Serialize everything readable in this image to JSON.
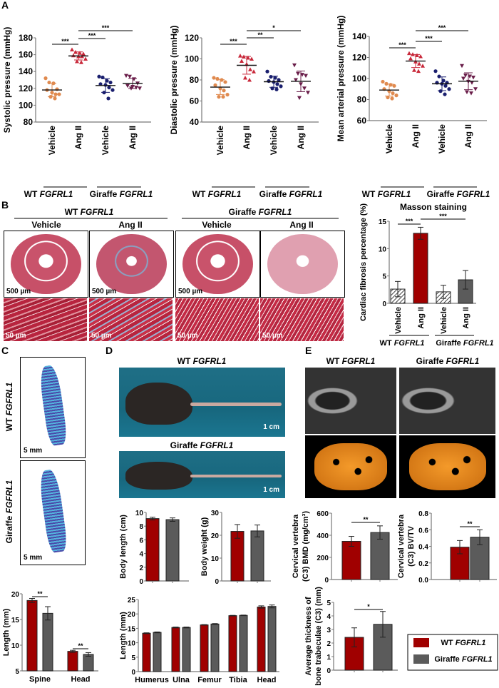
{
  "panel_labels": [
    "A",
    "B",
    "C",
    "D",
    "E"
  ],
  "genotypes": [
    {
      "pre": "WT",
      "gene": "FGFRL1"
    },
    {
      "pre": "Giraffe",
      "gene": "FGFRL1"
    }
  ],
  "treatments": [
    "Vehicle",
    "Ang II"
  ],
  "panel_b": {
    "scale_large": "500 µm",
    "scale_small": "50 µm"
  },
  "panel_c": {
    "scale": "5 mm"
  },
  "panel_d": {
    "scale": "1 cm"
  },
  "legend": [
    {
      "pre": "WT",
      "gene": "FGFRL1",
      "color": "#a00000"
    },
    {
      "pre": "Giraffe",
      "gene": "FGFRL1",
      "color": "#5b5b5b"
    }
  ],
  "chart_data": [
    {
      "id": "systolic",
      "type": "scatter",
      "ylabel": [
        "Systolic pressure (mmHg)"
      ],
      "ylim": [
        80,
        180
      ],
      "yticks": [
        80,
        100,
        120,
        140,
        160,
        180
      ],
      "categories": [
        "Vehicle",
        "Ang II",
        "Vehicle",
        "Ang II"
      ],
      "series": [
        {
          "name": "WT Vehicle",
          "color": "#e08a4f",
          "marker": "circle",
          "values": [
            132,
            127,
            126,
            119,
            118,
            115,
            113,
            113,
            110,
            108
          ]
        },
        {
          "name": "WT Ang II",
          "color": "#c8283a",
          "marker": "tri-up",
          "values": [
            166,
            163,
            162,
            161,
            159,
            158,
            158,
            155,
            152,
            151
          ]
        },
        {
          "name": "Giraffe Vehicle",
          "color": "#1a1f6e",
          "marker": "circle",
          "values": [
            134,
            133,
            129,
            127,
            125,
            124,
            121,
            118,
            115,
            108
          ]
        },
        {
          "name": "Giraffe Ang II",
          "color": "#6a1e4a",
          "marker": "tri-down",
          "values": [
            135,
            134,
            131,
            126,
            123,
            122,
            121,
            120,
            120
          ]
        }
      ],
      "significance": [
        {
          "from": 0,
          "to": 1,
          "label": "***"
        },
        {
          "from": 1,
          "to": 2,
          "label": "***"
        },
        {
          "from": 1,
          "to": 3,
          "label": "***"
        }
      ]
    },
    {
      "id": "diastolic",
      "type": "scatter",
      "ylabel": [
        "Diastolic pressure (mmHg)"
      ],
      "ylim": [
        40,
        120
      ],
      "yticks": [
        40,
        60,
        80,
        100,
        120
      ],
      "categories": [
        "Vehicle",
        "Ang II",
        "Vehicle",
        "Ang II"
      ],
      "series": [
        {
          "name": "WT Vehicle",
          "color": "#e08a4f",
          "marker": "circle",
          "values": [
            82,
            81,
            80,
            78,
            75,
            72,
            70,
            66,
            64,
            64
          ]
        },
        {
          "name": "WT Ang II",
          "color": "#c8283a",
          "marker": "tri-up",
          "values": [
            103,
            102,
            101,
            100,
            98,
            95,
            90,
            88,
            82,
            80
          ]
        },
        {
          "name": "Giraffe Vehicle",
          "color": "#1a1f6e",
          "marker": "circle",
          "values": [
            88,
            83,
            82,
            80,
            79,
            78,
            76,
            74,
            72,
            71
          ]
        },
        {
          "name": "Giraffe Ang II",
          "color": "#6a1e4a",
          "marker": "tri-down",
          "values": [
            94,
            86,
            85,
            84,
            80,
            76,
            72,
            68,
            63
          ]
        }
      ],
      "significance": [
        {
          "from": 0,
          "to": 1,
          "label": "***"
        },
        {
          "from": 1,
          "to": 2,
          "label": "**"
        },
        {
          "from": 1,
          "to": 3,
          "label": "*"
        }
      ]
    },
    {
      "id": "map",
      "type": "scatter",
      "ylabel": [
        "Mean arterial pressure (mmHg)"
      ],
      "ylim": [
        60,
        140
      ],
      "yticks": [
        60,
        80,
        100,
        120,
        140
      ],
      "categories": [
        "Vehicle",
        "Ang II",
        "Vehicle",
        "Ang II"
      ],
      "series": [
        {
          "name": "WT Vehicle",
          "color": "#e08a4f",
          "marker": "circle",
          "values": [
            97,
            95,
            94,
            93,
            90,
            88,
            86,
            84,
            82,
            81
          ]
        },
        {
          "name": "WT Ang II",
          "color": "#c8283a",
          "marker": "tri-up",
          "values": [
            124,
            123,
            122,
            121,
            119,
            116,
            114,
            112,
            108,
            107
          ]
        },
        {
          "name": "Giraffe Vehicle",
          "color": "#1a1f6e",
          "marker": "circle",
          "values": [
            107,
            102,
            98,
            96,
            96,
            95,
            93,
            90,
            88,
            85
          ]
        },
        {
          "name": "Giraffe Ang II",
          "color": "#6a1e4a",
          "marker": "tri-down",
          "values": [
            112,
            103,
            102,
            101,
            100,
            97,
            96,
            90,
            87,
            86
          ]
        }
      ],
      "significance": [
        {
          "from": 0,
          "to": 1,
          "label": "***"
        },
        {
          "from": 1,
          "to": 2,
          "label": "***"
        },
        {
          "from": 1,
          "to": 3,
          "label": "***"
        }
      ]
    },
    {
      "id": "masson",
      "type": "bar",
      "title": "Masson staining",
      "ylabel": [
        "Cardiac fibrosis percentage (%)"
      ],
      "ylim": [
        0,
        15
      ],
      "yticks": [
        0,
        5,
        10,
        15
      ],
      "categories": [
        "Vehicle",
        "Ang II",
        "Vehicle",
        "Ang II"
      ],
      "series": [
        {
          "name": "Cardiac fibrosis",
          "values": [
            2.6,
            12.8,
            2.1,
            4.3
          ],
          "errors": [
            1.4,
            1.1,
            1.2,
            1.7
          ],
          "fills": [
            "hatch",
            "#a00000",
            "hatch",
            "#5b5b5b"
          ]
        }
      ],
      "significance": [
        {
          "from": 0,
          "to": 1,
          "label": "***"
        },
        {
          "from": 1,
          "to": 3,
          "label": "***"
        }
      ]
    },
    {
      "id": "c_length",
      "type": "bar",
      "ylabel": [
        "Length (mm)"
      ],
      "ylim": [
        5,
        20
      ],
      "yticks": [
        5,
        10,
        15,
        20
      ],
      "categories": [
        "Spine",
        "Head"
      ],
      "series": [
        {
          "name": "WT FGFRL1",
          "values": [
            18.7,
            8.8
          ],
          "errors": [
            0.4,
            0.2
          ]
        },
        {
          "name": "Giraffe FGFRL1",
          "values": [
            16.2,
            8.2
          ],
          "errors": [
            1.3,
            0.35
          ]
        }
      ],
      "significance": [
        {
          "cat": 0,
          "label": "**"
        },
        {
          "cat": 1,
          "label": "**"
        }
      ]
    },
    {
      "id": "body_length",
      "type": "bar",
      "ylabel": [
        "Body length (cm)"
      ],
      "ylim": [
        0,
        10
      ],
      "yticks": [
        0,
        2,
        4,
        6,
        8,
        10
      ],
      "categories": [
        ""
      ],
      "series": [
        {
          "name": "WT FGFRL1",
          "values": [
            9.1
          ],
          "errors": [
            0.2
          ]
        },
        {
          "name": "Giraffe FGFRL1",
          "values": [
            8.95
          ],
          "errors": [
            0.25
          ]
        }
      ],
      "significance": []
    },
    {
      "id": "body_weight",
      "type": "bar",
      "ylabel": [
        "Body weight (g)"
      ],
      "ylim": [
        0,
        30
      ],
      "yticks": [
        0,
        10,
        20,
        30
      ],
      "categories": [
        ""
      ],
      "series": [
        {
          "name": "WT FGFRL1",
          "values": [
            21.7
          ],
          "errors": [
            3.0
          ]
        },
        {
          "name": "Giraffe FGFRL1",
          "values": [
            21.9
          ],
          "errors": [
            2.6
          ]
        }
      ],
      "significance": []
    },
    {
      "id": "bone_length",
      "type": "bar",
      "ylabel": [
        "Length (mm)"
      ],
      "ylim": [
        0,
        25
      ],
      "yticks": [
        0,
        5,
        10,
        15,
        20,
        25
      ],
      "categories": [
        "Humerus",
        "Ulna",
        "Femur",
        "Tibia",
        "Head"
      ],
      "series": [
        {
          "name": "WT FGFRL1",
          "values": [
            13.3,
            15.3,
            16.2,
            19.4,
            22.4
          ],
          "errors": [
            0.15,
            0.15,
            0.1,
            0.1,
            0.4
          ]
        },
        {
          "name": "Giraffe FGFRL1",
          "values": [
            13.6,
            15.3,
            16.5,
            19.5,
            22.6
          ],
          "errors": [
            0.15,
            0.15,
            0.15,
            0.1,
            0.5
          ]
        }
      ],
      "significance": []
    },
    {
      "id": "bmd",
      "type": "bar",
      "ylabel": [
        "Cervical vertebra",
        "(C3) BMD (mg/cm³)"
      ],
      "ylim": [
        0,
        600
      ],
      "yticks": [
        0,
        200,
        400,
        600
      ],
      "categories": [
        ""
      ],
      "series": [
        {
          "name": "WT FGFRL1",
          "values": [
            345
          ],
          "errors": [
            45
          ]
        },
        {
          "name": "Giraffe FGFRL1",
          "values": [
            425
          ],
          "errors": [
            60
          ]
        }
      ],
      "significance": [
        {
          "cat": 0,
          "label": "**"
        }
      ]
    },
    {
      "id": "bvtv",
      "type": "bar",
      "ylabel": [
        "Cervical vertebra",
        "(C3) BV/TV"
      ],
      "ylim": [
        0,
        0.8
      ],
      "yticks": [
        "0.0",
        "0.2",
        "0.4",
        "0.6",
        "0.8"
      ],
      "categories": [
        ""
      ],
      "series": [
        {
          "name": "WT FGFRL1",
          "values": [
            0.39
          ],
          "errors": [
            0.08
          ]
        },
        {
          "name": "Giraffe FGFRL1",
          "values": [
            0.51
          ],
          "errors": [
            0.09
          ]
        }
      ],
      "significance": [
        {
          "cat": 0,
          "label": "**"
        }
      ]
    },
    {
      "id": "thickness",
      "type": "bar",
      "ylabel": [
        "Average thickness of",
        "bone trabeculae (C3) (mm)"
      ],
      "ylim": [
        0,
        5
      ],
      "yticks": [
        0,
        1,
        2,
        3,
        4,
        5
      ],
      "categories": [
        ""
      ],
      "series": [
        {
          "name": "WT FGFRL1",
          "values": [
            2.42
          ],
          "errors": [
            0.7
          ]
        },
        {
          "name": "Giraffe FGFRL1",
          "values": [
            3.38
          ],
          "errors": [
            0.95
          ]
        }
      ],
      "significance": [
        {
          "cat": 0,
          "label": "*"
        }
      ]
    }
  ]
}
